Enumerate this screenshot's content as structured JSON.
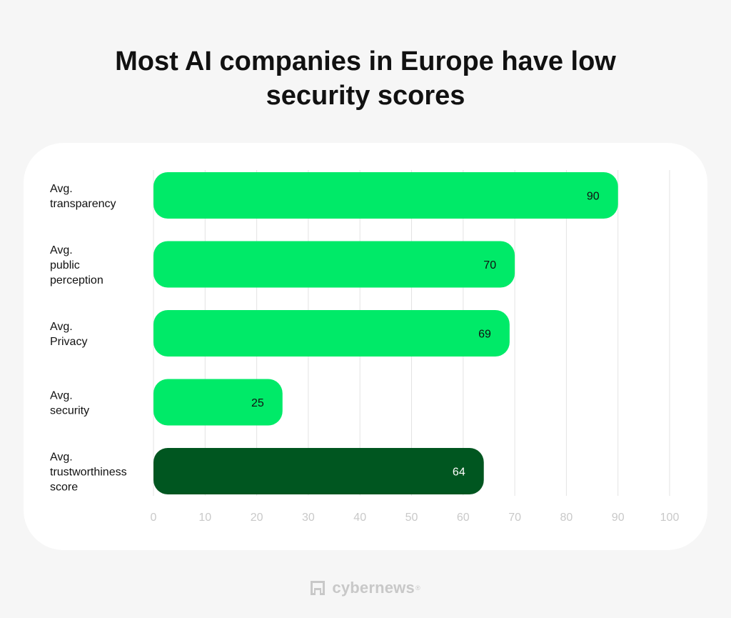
{
  "chart_data": {
    "type": "bar",
    "orientation": "horizontal",
    "title_lines": [
      "Most AI companies in Europe have low",
      "security scores"
    ],
    "categories": [
      [
        "Avg.",
        "transparency"
      ],
      [
        "Avg.",
        "public",
        "perception"
      ],
      [
        "Avg.",
        "Privacy"
      ],
      [
        "Avg.",
        "security"
      ],
      [
        "Avg.",
        "trustworthiness",
        "score"
      ]
    ],
    "values": [
      90,
      70,
      69,
      25,
      64
    ],
    "value_labels": [
      "90",
      "70",
      "69",
      "25",
      "64"
    ],
    "xlim": [
      0,
      100
    ],
    "xticks": [
      "0",
      "10",
      "20",
      "30",
      "40",
      "50",
      "60",
      "70",
      "80",
      "90",
      "100"
    ],
    "grid": true,
    "bar_colors": [
      "#00ea68",
      "#00ea68",
      "#00ea68",
      "#00ea68",
      "#005620"
    ],
    "label_colors": [
      "#111111",
      "#111111",
      "#111111",
      "#111111",
      "#ffffff"
    ]
  },
  "brand": {
    "name": "cybernews",
    "registered_mark": "®"
  }
}
